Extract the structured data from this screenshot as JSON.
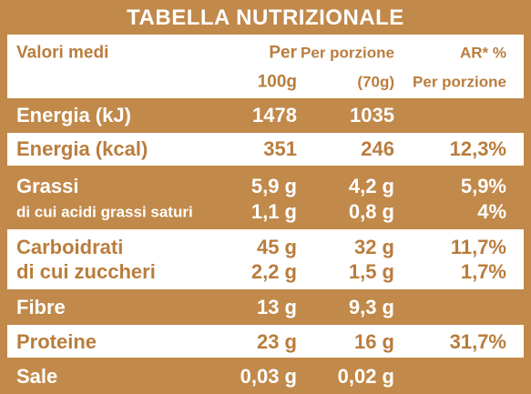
{
  "title": "TABELLA NUTRIZIONALE",
  "header": {
    "label": "Valori medi",
    "per100g": [
      "Per",
      "100g"
    ],
    "portion": [
      "Per porzione",
      "(70g)"
    ],
    "ar": [
      "AR* %",
      "Per porzione"
    ]
  },
  "rows": [
    {
      "lines": [
        {
          "label": "Energia (kJ)",
          "per100g": "1478",
          "portion": "1035"
        }
      ]
    },
    {
      "lines": [
        {
          "label": "Energia (kcal)",
          "per100g": "351",
          "portion": "246",
          "ar": "12,3%"
        }
      ]
    },
    {
      "lines": [
        {
          "label": "Grassi",
          "per100g": "5,9 g",
          "portion": "4,2 g",
          "ar": "5,9%"
        },
        {
          "label": "di cui acidi grassi saturi",
          "per100g": "1,1 g",
          "portion": "0,8 g",
          "ar": "4%"
        }
      ]
    },
    {
      "lines": [
        {
          "label": "Carboidrati",
          "per100g": "45 g",
          "portion": "32 g",
          "ar": "11,7%"
        },
        {
          "label": "di cui zuccheri",
          "per100g": "2,2 g",
          "portion": "1,5 g",
          "ar": "1,7%"
        }
      ]
    },
    {
      "lines": [
        {
          "label": "Fibre",
          "per100g": "13 g",
          "portion": "9,3 g"
        }
      ]
    },
    {
      "lines": [
        {
          "label": "Proteine",
          "per100g": "23 g",
          "portion": "16 g",
          "ar": "31,7%"
        }
      ]
    },
    {
      "lines": [
        {
          "label": "Sale",
          "per100g": "0,03 g",
          "portion": "0,02 g"
        }
      ]
    }
  ]
}
